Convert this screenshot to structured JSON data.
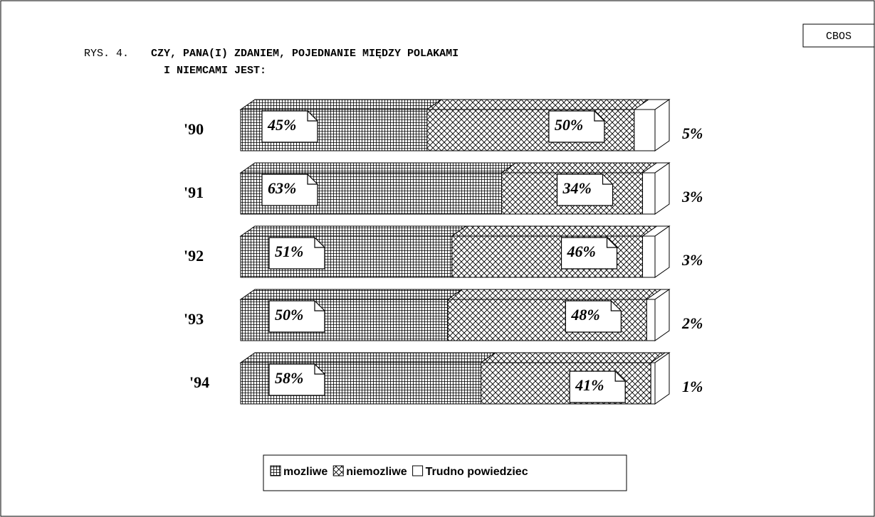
{
  "chart_data": {
    "type": "stacked-bar-3d",
    "figure_label": "RYS. 4.",
    "title": [
      "CZY, PANA(I) ZDANIEM, POJEDNANIE MIĘDZY POLAKAMI",
      "I NIEMCAMI JEST:"
    ],
    "source": "CBOS",
    "categories": [
      "'90",
      "'91",
      "'92",
      "'93",
      "'94"
    ],
    "xlim": [
      0,
      100
    ],
    "series": [
      {
        "name": "mozliwe",
        "color": "#000000",
        "pattern": "grid",
        "values": [
          45,
          63,
          51,
          50,
          58
        ],
        "value_labels": [
          "45%",
          "63%",
          "51%",
          "50%",
          "58%"
        ]
      },
      {
        "name": "niemozliwe",
        "color": "#000000",
        "pattern": "crosshatch",
        "values": [
          50,
          34,
          46,
          48,
          41
        ],
        "value_labels": [
          "50%",
          "34%",
          "46%",
          "48%",
          "41%"
        ]
      },
      {
        "name": "Trudno powiedziec",
        "color": "#000000",
        "pattern": "none",
        "values": [
          5,
          3,
          3,
          2,
          1
        ],
        "value_labels": [
          "5%",
          "3%",
          "3%",
          "2%",
          "1%"
        ]
      }
    ],
    "legend": "bottom"
  }
}
